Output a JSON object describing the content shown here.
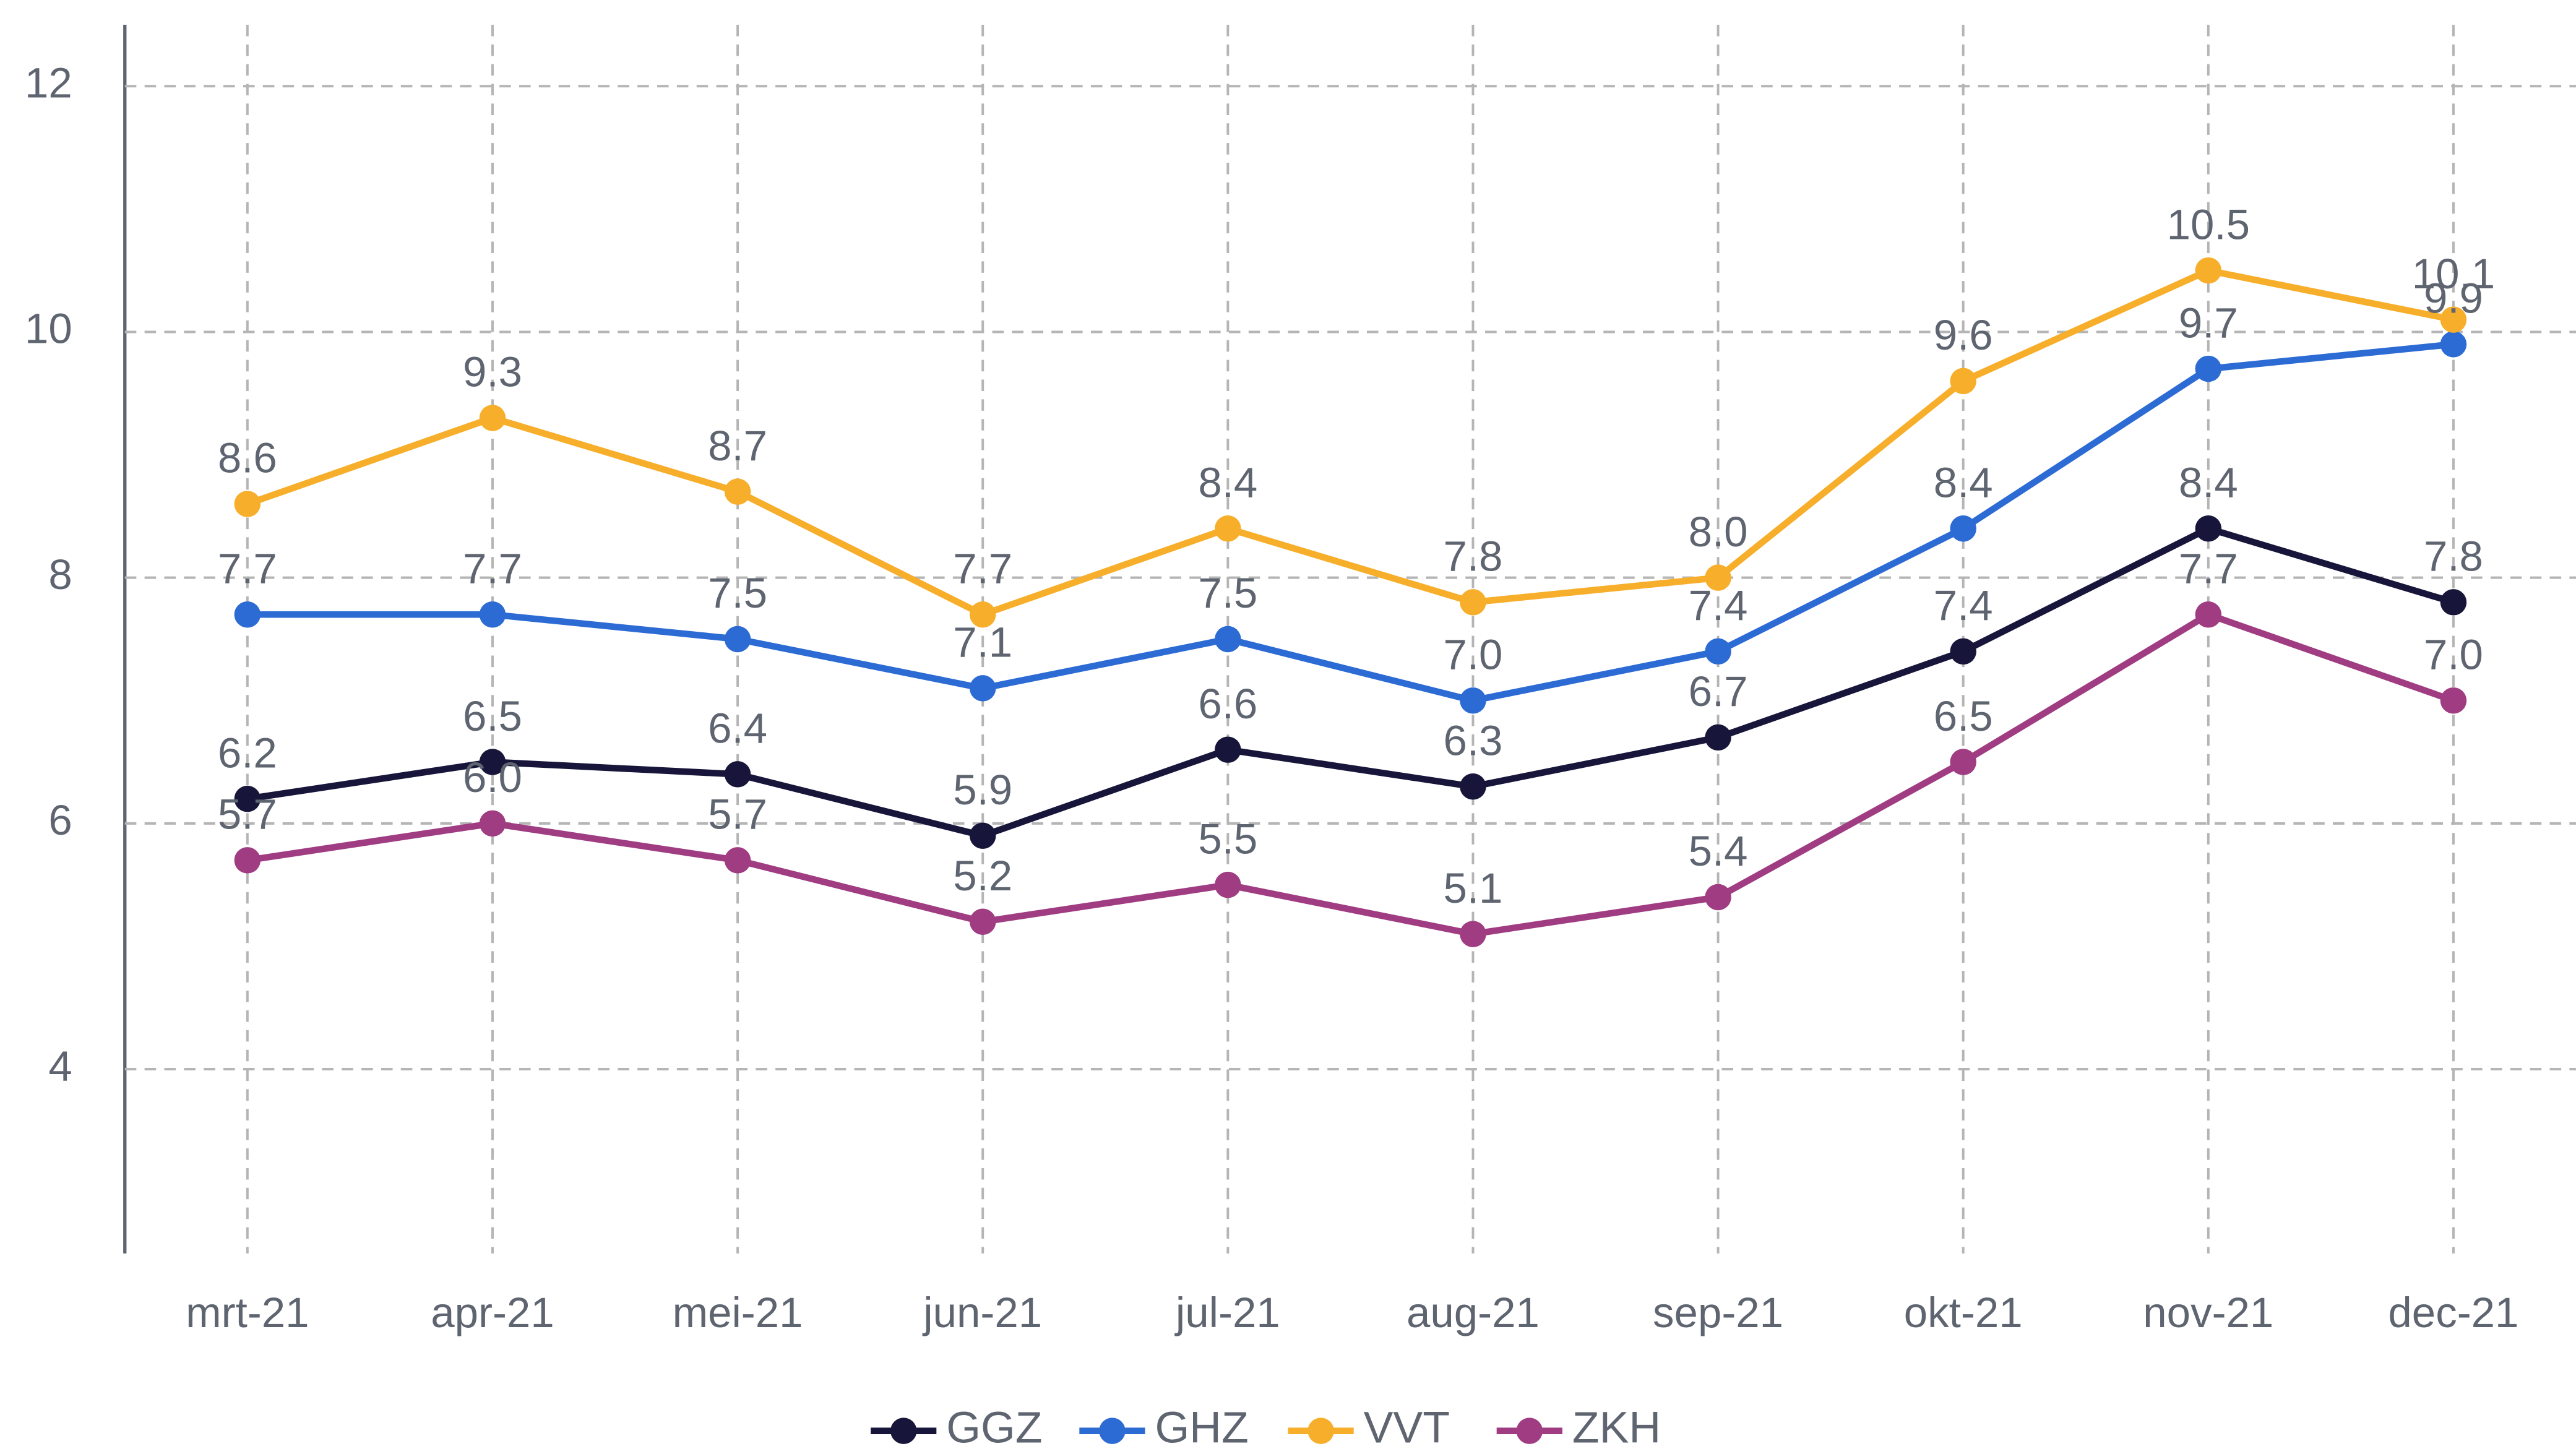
{
  "chart_data": {
    "type": "line",
    "categories": [
      "mrt-21",
      "apr-21",
      "mei-21",
      "jun-21",
      "jul-21",
      "aug-21",
      "sep-21",
      "okt-21",
      "nov-21",
      "dec-21"
    ],
    "series": [
      {
        "name": "GGZ",
        "color": "#17163a",
        "values": [
          6.2,
          6.5,
          6.4,
          5.9,
          6.6,
          6.3,
          6.7,
          7.4,
          8.4,
          7.8
        ],
        "value_labels": [
          "6.2",
          "6.5",
          "6.4",
          "5.9",
          "6.6",
          "6.3",
          "6.7",
          "7.4",
          "8.4",
          "7.8"
        ]
      },
      {
        "name": "GHZ",
        "color": "#2d6bd4",
        "values": [
          7.7,
          7.7,
          7.5,
          7.1,
          7.5,
          7.0,
          7.4,
          8.4,
          9.7,
          9.9
        ],
        "value_labels": [
          "7.7",
          "7.7",
          "7.5",
          "7.1",
          "7.5",
          "7.0",
          "7.4",
          "8.4",
          "9.7",
          "9.9"
        ]
      },
      {
        "name": "VVT",
        "color": "#f7ae2a",
        "values": [
          8.6,
          9.3,
          8.7,
          7.7,
          8.4,
          7.8,
          8.0,
          9.6,
          10.5,
          10.1
        ],
        "value_labels": [
          "8.6",
          "9.3",
          "8.7",
          "7.7",
          "8.4",
          "7.8",
          "8.0",
          "9.6",
          "10.5",
          "10.1"
        ]
      },
      {
        "name": "ZKH",
        "color": "#a03c82",
        "values": [
          5.7,
          6.0,
          5.7,
          5.2,
          5.5,
          5.1,
          5.4,
          6.5,
          7.7,
          7.0
        ],
        "value_labels": [
          "5.7",
          "6.0",
          "5.7",
          "5.2",
          "5.5",
          "5.1",
          "5.4",
          "6.5",
          "7.7",
          "7.0"
        ]
      }
    ],
    "ylim": [
      2.5,
      12.5
    ],
    "yticks": [
      4,
      6,
      8,
      10,
      12
    ],
    "grid": true,
    "legend": "bottom"
  }
}
